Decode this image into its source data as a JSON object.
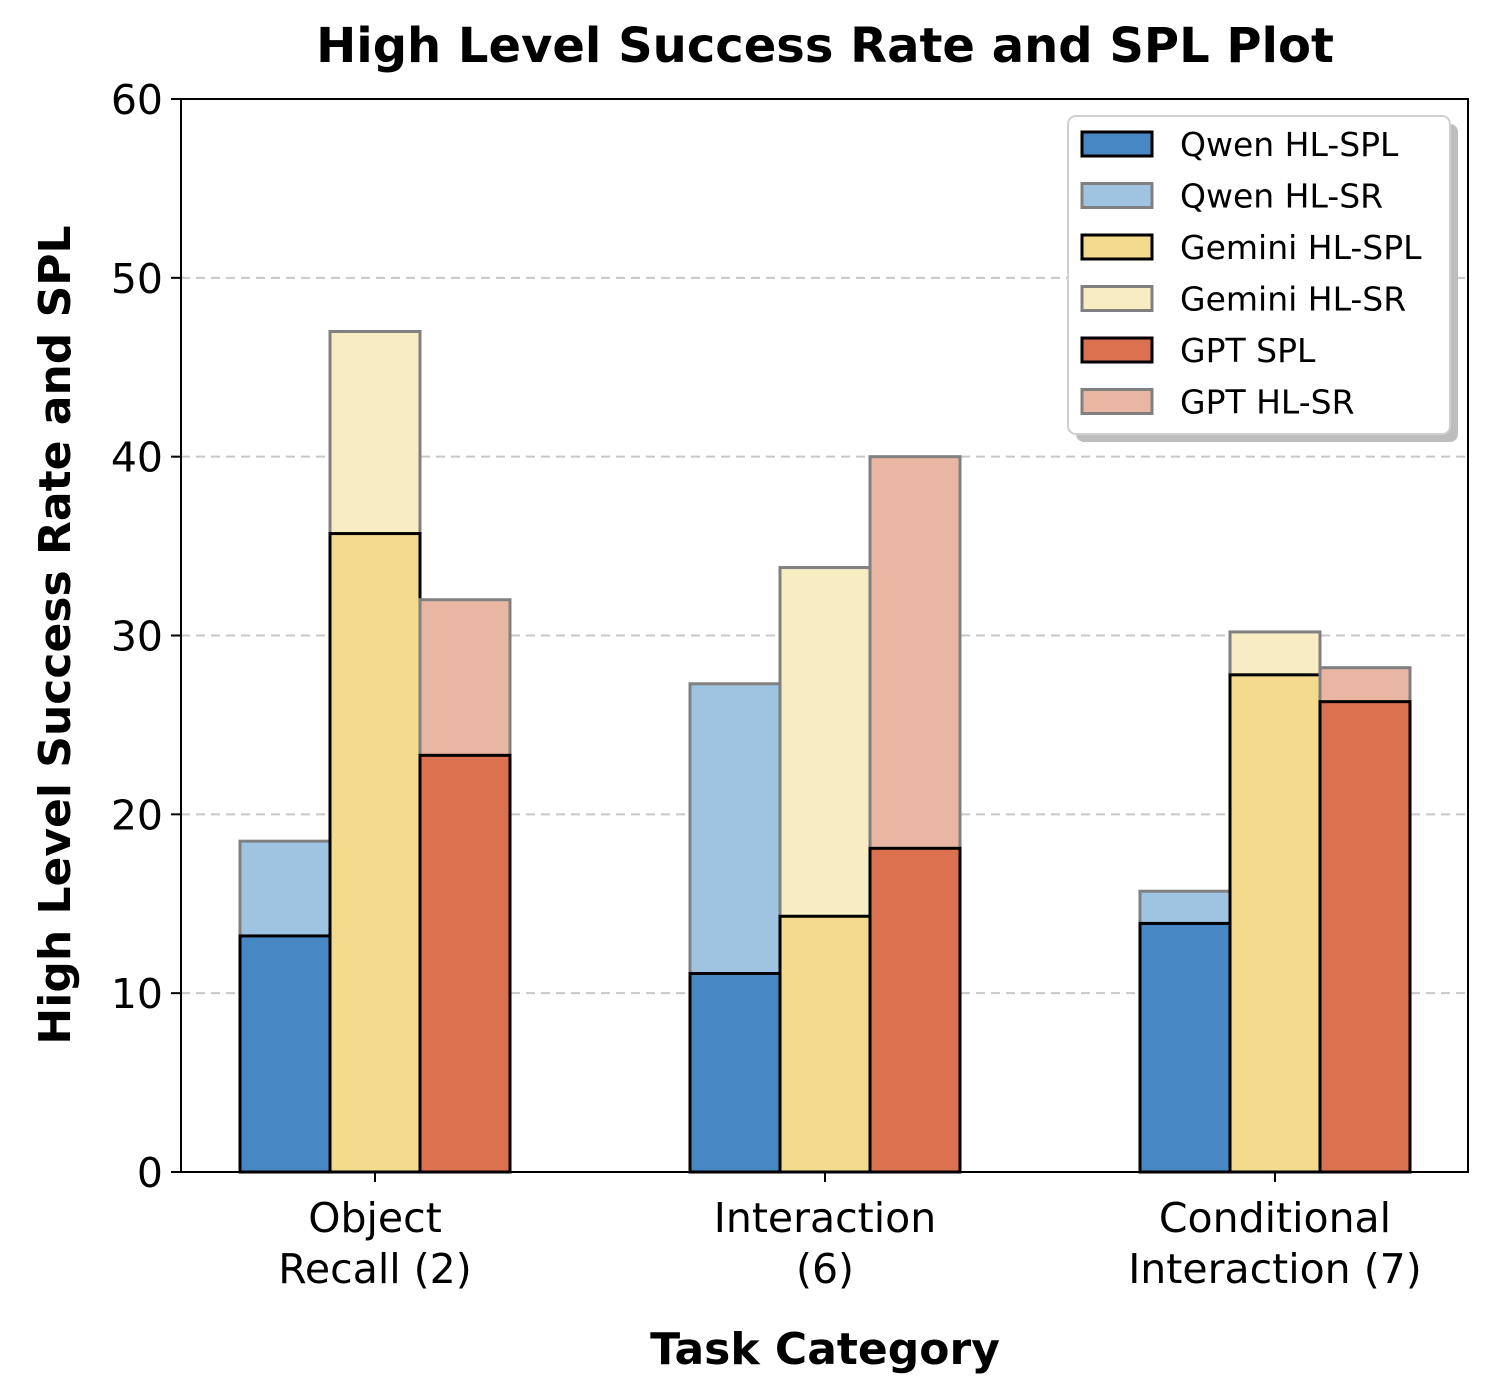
{
  "chart_data": {
    "type": "bar",
    "title": "High Level Success Rate and SPL Plot",
    "xlabel": "Task Category",
    "ylabel": "High Level Success Rate and SPL",
    "categories": [
      [
        "Object",
        "Recall (2)"
      ],
      [
        "Interaction",
        "(6)"
      ],
      [
        "Conditional",
        "Interaction (7)"
      ]
    ],
    "ylim": [
      0,
      60
    ],
    "yticks": [
      0,
      10,
      20,
      30,
      40,
      50,
      60
    ],
    "grid": "y-dashed",
    "legend_position": "top-right",
    "groups": [
      {
        "model": "Qwen",
        "sr": {
          "name": "Qwen HL-SR",
          "color": "#9fc4e2",
          "values": [
            18.5,
            27.3,
            15.7
          ]
        },
        "spl": {
          "name": "Qwen HL-SPL",
          "color": "#4787c4",
          "values": [
            13.2,
            11.1,
            13.9
          ]
        }
      },
      {
        "model": "Gemini",
        "sr": {
          "name": "Gemini HL-SR",
          "color": "#f8ecc2",
          "values": [
            47.0,
            33.8,
            30.2
          ]
        },
        "spl": {
          "name": "Gemini HL-SPL",
          "color": "#f3da8c",
          "values": [
            35.7,
            14.3,
            27.8
          ]
        }
      },
      {
        "model": "GPT",
        "sr": {
          "name": "GPT HL-SR",
          "color": "#e9b6a3",
          "values": [
            32.0,
            40.0,
            28.2
          ]
        },
        "spl": {
          "name": "GPT SPL",
          "color": "#dc714f",
          "values": [
            23.3,
            18.1,
            26.3
          ]
        }
      }
    ],
    "legend": [
      {
        "label": "Qwen HL-SPL",
        "color": "#4787c4",
        "edge": "#000000"
      },
      {
        "label": "Qwen HL-SR",
        "color": "#9fc4e2",
        "edge": "#808080"
      },
      {
        "label": "Gemini HL-SPL",
        "color": "#f3da8c",
        "edge": "#000000"
      },
      {
        "label": "Gemini HL-SR",
        "color": "#f8ecc2",
        "edge": "#808080"
      },
      {
        "label": "GPT SPL",
        "color": "#dc714f",
        "edge": "#000000"
      },
      {
        "label": "GPT HL-SR",
        "color": "#e9b6a3",
        "edge": "#808080"
      }
    ]
  }
}
